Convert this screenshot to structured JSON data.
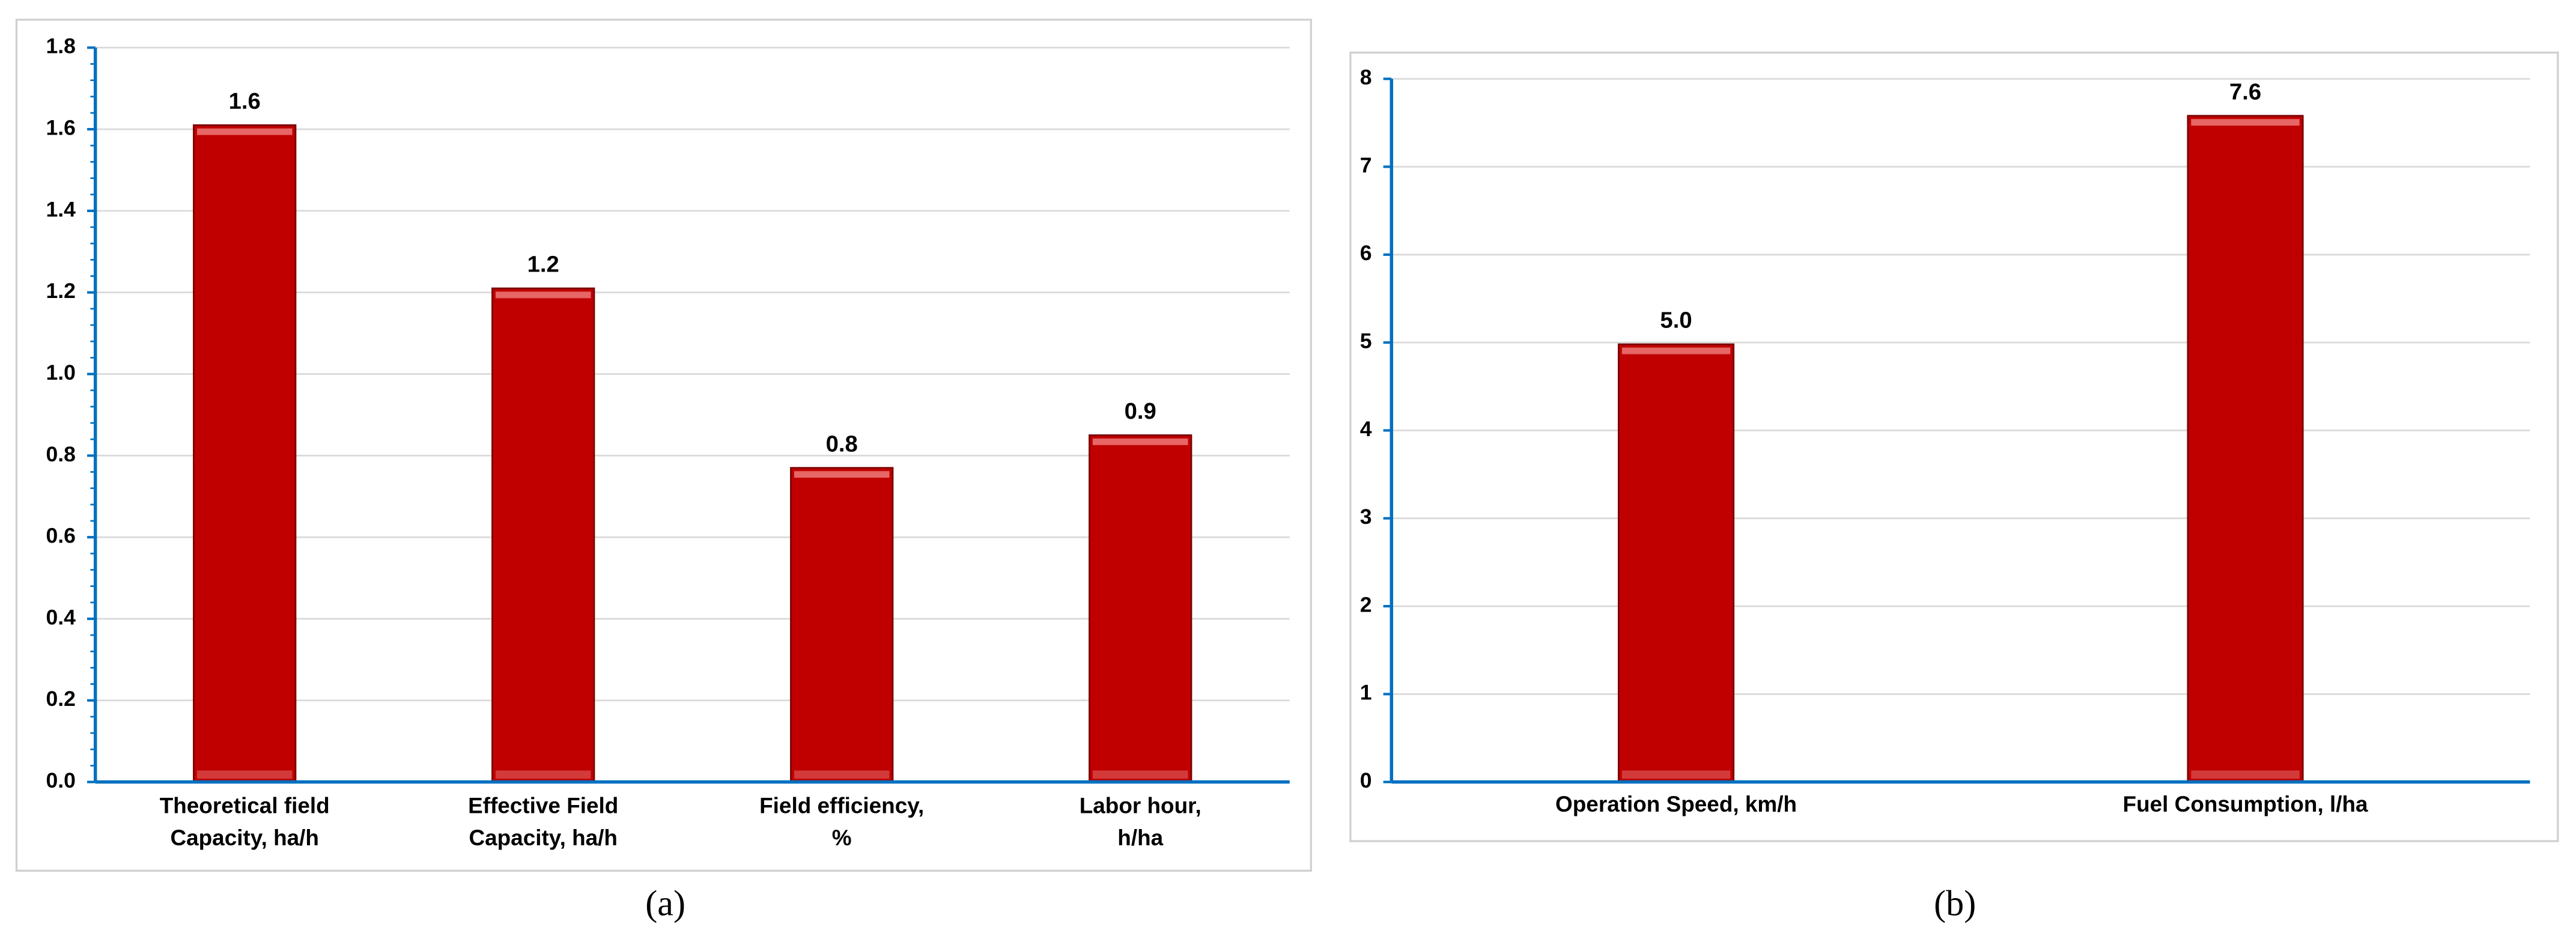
{
  "chart_data": [
    {
      "type": "bar",
      "caption": "(a)",
      "categories": [
        "Theoretical field\nCapacity, ha/h",
        "Effective Field\nCapacity, ha/h",
        "Field efficiency,\n%",
        "Labor hour,\nh/ha"
      ],
      "values": [
        1.61,
        1.21,
        0.77,
        0.85
      ],
      "value_labels": [
        "1.6",
        "1.2",
        "0.8",
        "0.9"
      ],
      "color": "#c00000",
      "ylim": [
        0,
        1.8
      ],
      "yticks": [
        {
          "value": 0,
          "label": "0.0"
        },
        0.2,
        0.4,
        0.6,
        0.8,
        {
          "value": 1,
          "label": "1.0"
        },
        1.2,
        1.4,
        1.6,
        1.8
      ],
      "grid": true
    },
    {
      "type": "bar",
      "caption": "(b)",
      "categories": [
        "Operation Speed, km/h",
        "Fuel Consumption, l/ha"
      ],
      "values": [
        4.98,
        7.58
      ],
      "value_labels": [
        "5.0",
        "7.6"
      ],
      "color": "#c00000",
      "ylim": [
        0,
        8
      ],
      "yticks": [
        0,
        1,
        2,
        3,
        4,
        5,
        6,
        7,
        8
      ],
      "grid": true
    }
  ]
}
